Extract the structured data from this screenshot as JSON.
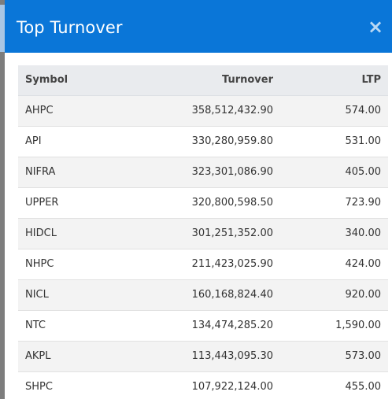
{
  "modal": {
    "title": "Top Turnover",
    "close_icon": "×"
  },
  "table": {
    "headers": {
      "symbol": "Symbol",
      "turnover": "Turnover",
      "ltp": "LTP"
    },
    "rows": [
      {
        "symbol": "AHPC",
        "turnover": "358,512,432.90",
        "ltp": "574.00"
      },
      {
        "symbol": "API",
        "turnover": "330,280,959.80",
        "ltp": "531.00"
      },
      {
        "symbol": "NIFRA",
        "turnover": "323,301,086.90",
        "ltp": "405.00"
      },
      {
        "symbol": "UPPER",
        "turnover": "320,800,598.50",
        "ltp": "723.90"
      },
      {
        "symbol": "HIDCL",
        "turnover": "301,251,352.00",
        "ltp": "340.00"
      },
      {
        "symbol": "NHPC",
        "turnover": "211,423,025.90",
        "ltp": "424.00"
      },
      {
        "symbol": "NICL",
        "turnover": "160,168,824.40",
        "ltp": "920.00"
      },
      {
        "symbol": "NTC",
        "turnover": "134,474,285.20",
        "ltp": "1,590.00"
      },
      {
        "symbol": "AKPL",
        "turnover": "113,443,095.30",
        "ltp": "573.00"
      },
      {
        "symbol": "SHPC",
        "turnover": "107,922,124.00",
        "ltp": "455.00"
      }
    ]
  },
  "colors": {
    "header_bg": "#0a76d8",
    "table_head_bg": "#e9ebee",
    "row_stripe": "#f3f3f3"
  }
}
